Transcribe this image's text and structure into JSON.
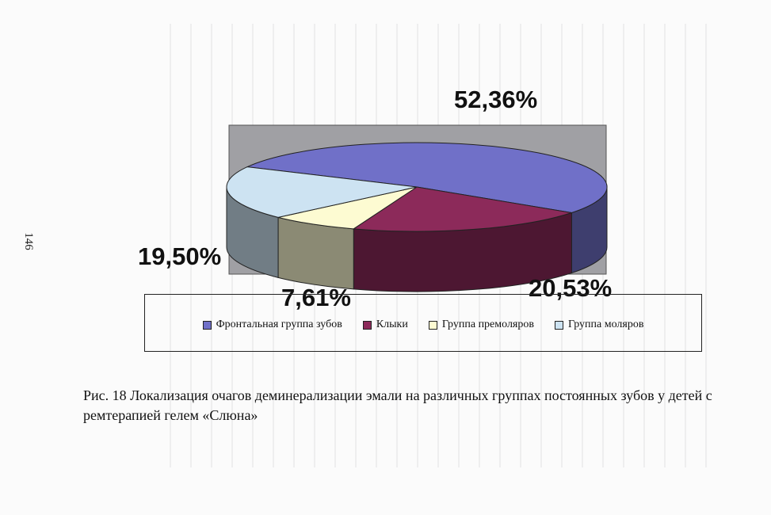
{
  "page_number": "146",
  "chart_data": {
    "type": "pie",
    "style": "3d",
    "categories": [
      "Фронтальная группа зубов",
      "Клыки",
      "Группа премоляров",
      "Группа моляров"
    ],
    "values": [
      52.36,
      20.53,
      7.61,
      19.5
    ],
    "data_labels": [
      "52,36%",
      "20,53%",
      "7,61%",
      "19,50%"
    ],
    "colors": [
      "#7070c8",
      "#8c2a5a",
      "#fdfbd2",
      "#cde3f2"
    ],
    "legend_position": "bottom"
  },
  "caption": "Рис. 18 Локализация очагов деминерализации эмали на различных группах постоянных зубов у детей с ремтерапией гелем «Слюна»"
}
